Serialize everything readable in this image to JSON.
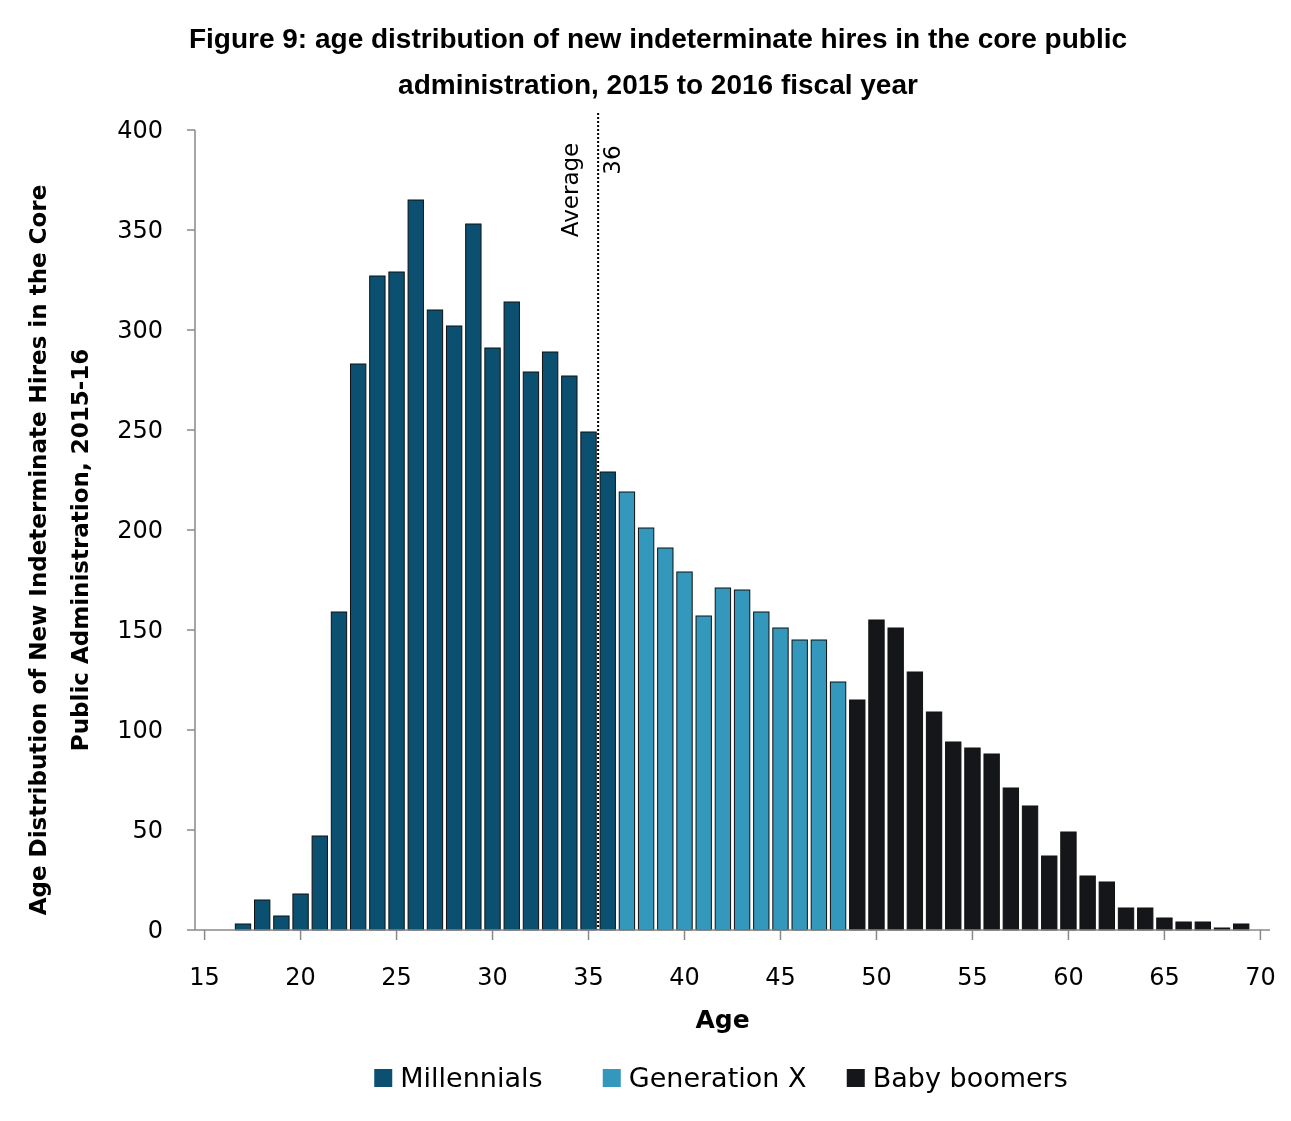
{
  "chart_data": {
    "type": "bar",
    "title": "Figure 9: age distribution of new indeterminate hires in the core public administration, 2015 to 2016 fiscal year",
    "xlabel": "Age",
    "ylabel": "Age Distribution of New Indeterminate Hires in the Core Public Administration, 2015-16",
    "xlim": [
      14.5,
      70.5
    ],
    "xticks": [
      15,
      20,
      25,
      30,
      35,
      40,
      45,
      50,
      55,
      60,
      65,
      70
    ],
    "ylim": [
      0,
      400
    ],
    "yticks": [
      0,
      50,
      100,
      150,
      200,
      250,
      300,
      350,
      400
    ],
    "grid": false,
    "legend": "bottom",
    "series": [
      {
        "name": "Millennials",
        "color": "#0b5070",
        "x": [
          17,
          18,
          19,
          20,
          21,
          22,
          23,
          24,
          25,
          26,
          27,
          28,
          29,
          30,
          31,
          32,
          33,
          34,
          35,
          36
        ],
        "values": [
          3,
          15,
          7,
          18,
          47,
          159,
          283,
          327,
          329,
          365,
          310,
          302,
          353,
          291,
          314,
          279,
          289,
          277,
          249,
          229
        ]
      },
      {
        "name": "Generation X",
        "color": "#3398bb",
        "x": [
          37,
          38,
          39,
          40,
          41,
          42,
          43,
          44,
          45,
          46,
          47,
          48
        ],
        "values": [
          219,
          201,
          191,
          179,
          157,
          171,
          170,
          159,
          151,
          145,
          145,
          124
        ]
      },
      {
        "name": "Baby boomers",
        "color": "#141619",
        "x": [
          49,
          50,
          51,
          52,
          53,
          54,
          55,
          56,
          57,
          58,
          59,
          60,
          61,
          62,
          63,
          64,
          65,
          66,
          67,
          68,
          69
        ],
        "values": [
          115,
          155,
          151,
          129,
          109,
          94,
          91,
          88,
          71,
          62,
          37,
          49,
          27,
          24,
          11,
          11,
          6,
          4,
          4,
          1,
          3
        ]
      }
    ],
    "ref_lines": [
      {
        "axis": "x",
        "value": 35.5,
        "label": "Average",
        "line_style": "dotted",
        "color": "#000000"
      }
    ],
    "annotations": [
      "36"
    ]
  }
}
